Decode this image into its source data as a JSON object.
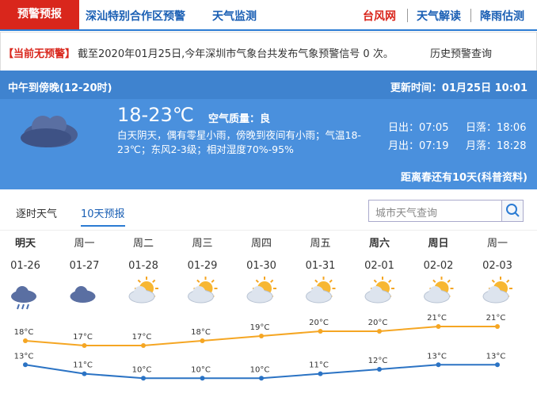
{
  "nav": {
    "tabs": [
      "预警预报",
      "深汕特别合作区预警",
      "天气监测"
    ],
    "links": [
      "台风网",
      "天气解读",
      "降雨估测"
    ]
  },
  "alert": {
    "status": "【当前无预警】",
    "text": "截至2020年01月25日,今年深圳市气象台共发布气象预警信号 0 次。",
    "history": "历史预警查询"
  },
  "current": {
    "period": "中午到傍晚(12-20时)",
    "updated": "更新时间：01月25日 10:01",
    "temp": "18-23℃",
    "air": "空气质量：良",
    "desc": "白天阴天，偶有零星小雨，傍晚到夜间有小雨；气温18-23℃；东风2-3级；相对湿度70%-95%",
    "sunrise": "日出：07:05",
    "sunset": "日落：18:06",
    "moonrise": "月出：07:19",
    "moonset": "月落：18:28",
    "countdown": "距离春还有10天(科普资料)"
  },
  "forecast": {
    "tabs": [
      "逐时天气",
      "10天预报"
    ],
    "search_placeholder": "城市天气查询",
    "days": [
      "明天",
      "周一",
      "周二",
      "周三",
      "周四",
      "周五",
      "周六",
      "周日",
      "周一"
    ],
    "dates": [
      "01-26",
      "01-27",
      "01-28",
      "01-29",
      "01-30",
      "01-31",
      "02-01",
      "02-02",
      "02-03"
    ],
    "high": {
      "values": [
        18,
        17,
        17,
        18,
        19,
        20,
        20,
        21,
        21
      ],
      "value_labels": [
        "18°C",
        "17°C",
        "17°C",
        "18°C",
        "19°C",
        "20°C",
        "20°C",
        "21°C",
        "21°C"
      ]
    },
    "low": {
      "values": [
        13,
        11,
        10,
        10,
        10,
        11,
        12,
        13,
        13
      ],
      "value_labels": [
        "13°C",
        "11°C",
        "10°C",
        "10°C",
        "10°C",
        "11°C",
        "12°C",
        "13°C",
        "13°C"
      ]
    }
  }
}
